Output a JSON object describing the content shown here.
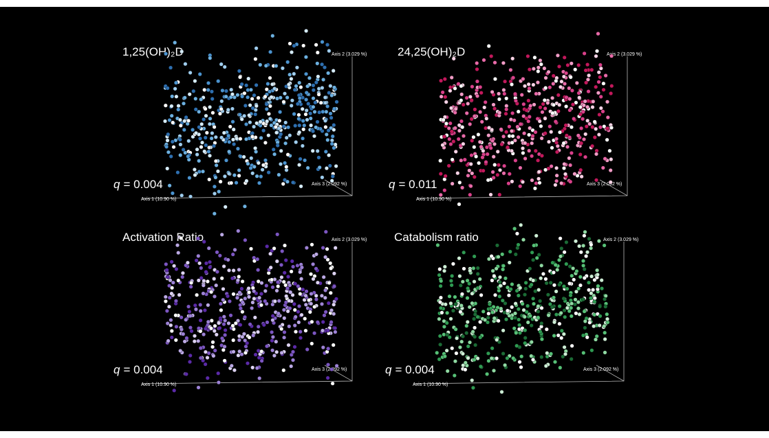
{
  "panels": [
    {
      "title": "1,25(OH)₂D",
      "q_symbol": "q",
      "q_text": "= 0.004",
      "axis1": "Axis 1 (10.90 %)",
      "axis2": "Axis 2 (3.029 %)",
      "axis3": "Axis 3 (2.092 %)"
    },
    {
      "title": "24,25(OH)₂D",
      "q_symbol": "q",
      "q_text": "= 0.011",
      "axis1": "Axis 1 (10.90 %)",
      "axis2": "Axis 2 (3.029 %)",
      "axis3": "Axis 3 (2.092 %)"
    },
    {
      "title": "Activation Ratio",
      "q_symbol": "q",
      "q_text": "= 0.004",
      "axis1": "Axis 1 (10.90 %)",
      "axis2": "Axis 2 (3.029 %)",
      "axis3": "Axis 3 (2.092 %)"
    },
    {
      "title": "Catabolism ratio",
      "q_symbol": "q",
      "q_text": "= 0.004",
      "axis1": "Axis 1 (10.90 %)",
      "axis2": "Axis 2 (3.029 %)",
      "axis3": "Axis 3 (2.092 %)"
    }
  ]
}
